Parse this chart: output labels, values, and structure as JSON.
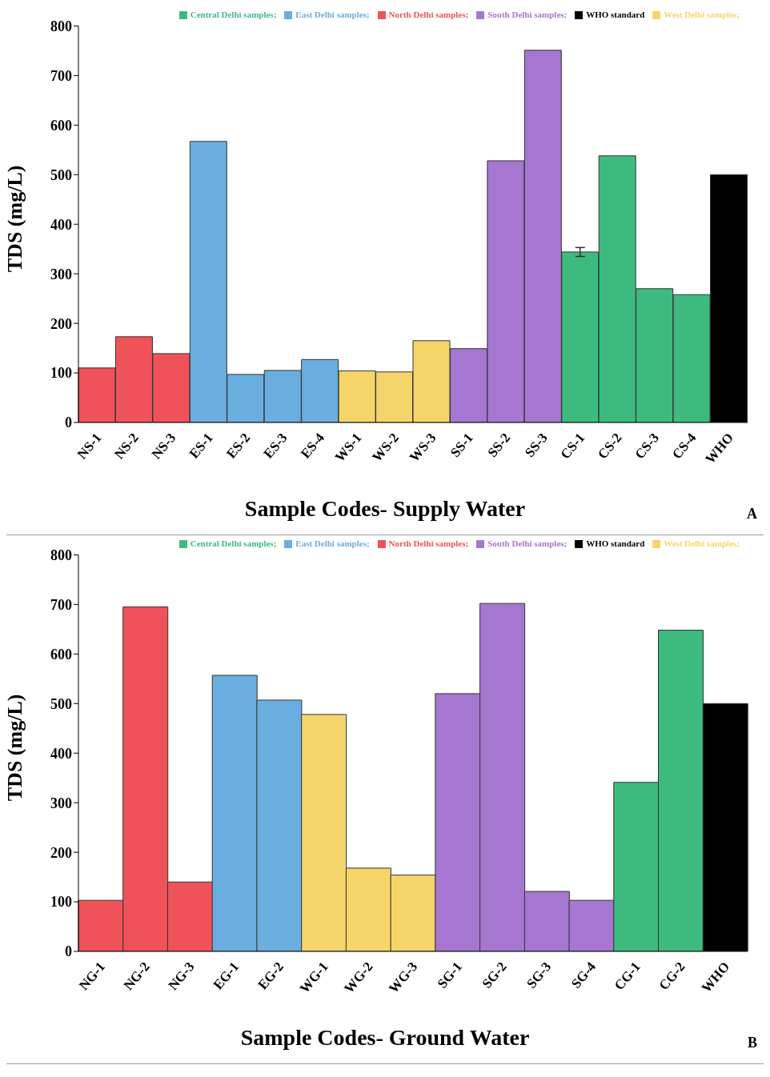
{
  "chart_data": [
    {
      "type": "bar",
      "stacked": true,
      "xlabel": "Sample Codes- Supply Water",
      "ylabel": "TDS (mg/L)",
      "annotations": [
        "A"
      ],
      "legend": "top right",
      "grid": false,
      "ylim": [
        0,
        800
      ],
      "yticks": [
        0,
        100,
        200,
        300,
        400,
        500,
        600,
        700,
        800
      ],
      "categories": [
        "NS-1",
        "NS-2",
        "NS-3",
        "ES-1",
        "ES-2",
        "ES-3",
        "ES-4",
        "WS-1",
        "WS-2",
        "WS-3",
        "SS-1",
        "SS-2",
        "SS-3",
        "CS-1",
        "CS-2",
        "CS-3",
        "CS-4",
        "WHO"
      ],
      "series": [
        {
          "name": "North Delhi samples;",
          "color": "#f0525a",
          "values": [
            110,
            173,
            139,
            null,
            null,
            null,
            null,
            null,
            null,
            null,
            null,
            null,
            null,
            null,
            null,
            null,
            null,
            null
          ]
        },
        {
          "name": "East Delhi samples;",
          "color": "#6aaee0",
          "values": [
            null,
            null,
            null,
            567,
            97,
            105,
            127,
            null,
            null,
            null,
            null,
            null,
            null,
            null,
            null,
            null,
            null,
            null
          ]
        },
        {
          "name": "West Delhi samples;",
          "color": "#f5d56a",
          "values": [
            null,
            null,
            null,
            null,
            null,
            null,
            null,
            104,
            102,
            165,
            null,
            null,
            null,
            null,
            null,
            null,
            null,
            null
          ]
        },
        {
          "name": "South Delhi samples;",
          "color": "#a577d0",
          "values": [
            null,
            null,
            null,
            null,
            null,
            null,
            null,
            null,
            null,
            null,
            149,
            528,
            751,
            null,
            null,
            null,
            null,
            null
          ]
        },
        {
          "name": "Central Delhi samples;",
          "color": "#3dbb7f",
          "values": [
            null,
            null,
            null,
            null,
            null,
            null,
            null,
            null,
            null,
            null,
            null,
            null,
            null,
            344,
            538,
            270,
            258,
            null
          ],
          "errors": [
            null,
            null,
            null,
            null,
            null,
            null,
            null,
            null,
            null,
            null,
            null,
            null,
            null,
            9,
            null,
            null,
            null,
            null
          ]
        },
        {
          "name": "WHO standard",
          "color": "#000000",
          "values": [
            null,
            null,
            null,
            null,
            null,
            null,
            null,
            null,
            null,
            null,
            null,
            null,
            null,
            null,
            null,
            null,
            null,
            500
          ]
        }
      ]
    },
    {
      "type": "bar",
      "stacked": true,
      "xlabel": "Sample Codes- Ground Water",
      "ylabel": "TDS (mg/L)",
      "annotations": [
        "B"
      ],
      "legend": "top right",
      "grid": false,
      "ylim": [
        0,
        800
      ],
      "yticks": [
        0,
        100,
        200,
        300,
        400,
        500,
        600,
        700,
        800
      ],
      "categories": [
        "NG-1",
        "NG-2",
        "NG-3",
        "EG-1",
        "EG-2",
        "WG-1",
        "WG-2",
        "WG-3",
        "SG-1",
        "SG-2",
        "SG-3",
        "SG-4",
        "CG-1",
        "CG-2",
        "WHO"
      ],
      "series": [
        {
          "name": "North Delhi samples;",
          "color": "#f0525a",
          "values": [
            103,
            695,
            140,
            null,
            null,
            null,
            null,
            null,
            null,
            null,
            null,
            null,
            null,
            null,
            null
          ]
        },
        {
          "name": "East Delhi samples;",
          "color": "#6aaee0",
          "values": [
            null,
            null,
            null,
            557,
            507,
            null,
            null,
            null,
            null,
            null,
            null,
            null,
            null,
            null,
            null
          ]
        },
        {
          "name": "West Delhi samples;",
          "color": "#f5d56a",
          "values": [
            null,
            null,
            null,
            null,
            null,
            478,
            168,
            154,
            null,
            null,
            null,
            null,
            null,
            null,
            null
          ]
        },
        {
          "name": "South Delhi samples;",
          "color": "#a577d0",
          "values": [
            null,
            null,
            null,
            null,
            null,
            null,
            null,
            null,
            520,
            702,
            121,
            103,
            null,
            null,
            null
          ]
        },
        {
          "name": "Central Delhi samples;",
          "color": "#3dbb7f",
          "values": [
            null,
            null,
            null,
            null,
            null,
            null,
            null,
            null,
            null,
            null,
            null,
            null,
            341,
            648,
            null
          ]
        },
        {
          "name": "WHO standard",
          "color": "#000000",
          "values": [
            null,
            null,
            null,
            null,
            null,
            null,
            null,
            null,
            null,
            null,
            null,
            null,
            null,
            null,
            500
          ]
        }
      ]
    }
  ]
}
